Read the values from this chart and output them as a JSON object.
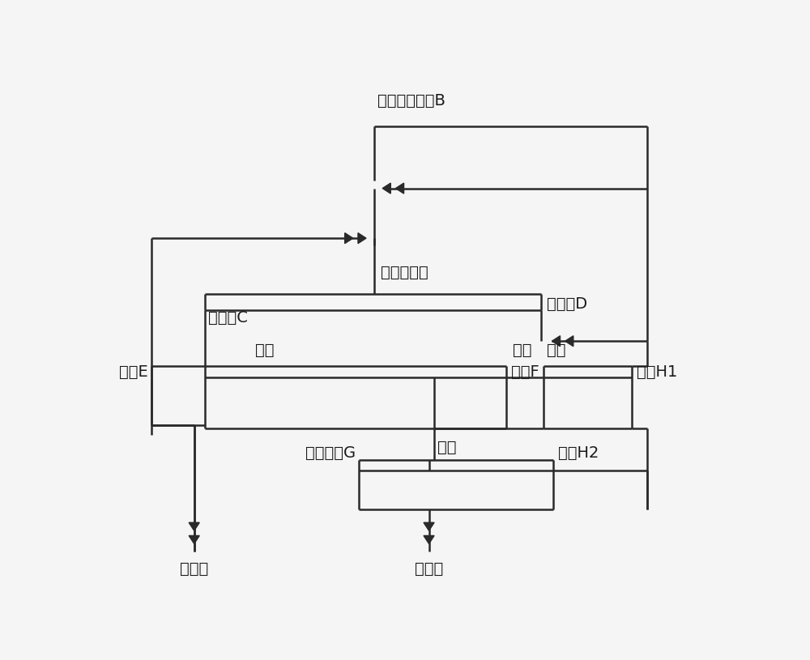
{
  "bg_color": "#f5f5f5",
  "line_color": "#2a2a2a",
  "text_color": "#1a1a1a",
  "lw": 1.8,
  "labels": {
    "top_input": "酸洗后钛精矿B",
    "rough_float": "反浮选粗选",
    "coarse_conc": "粗浮精C",
    "coarse_tail": "粗浮尾D",
    "yi_jing": "一精",
    "conc_E": "精矿E",
    "tail_F": "精尾F",
    "fu_wei": "浮尾",
    "yi_sao": "一扫",
    "mid_H1": "中矿H1",
    "er_sao": "二扫",
    "tail_G": "二扫尾矿G",
    "mid_H2": "中矿H2",
    "fe_conc": "铁精矿",
    "ti_conc": "钛精矿"
  }
}
